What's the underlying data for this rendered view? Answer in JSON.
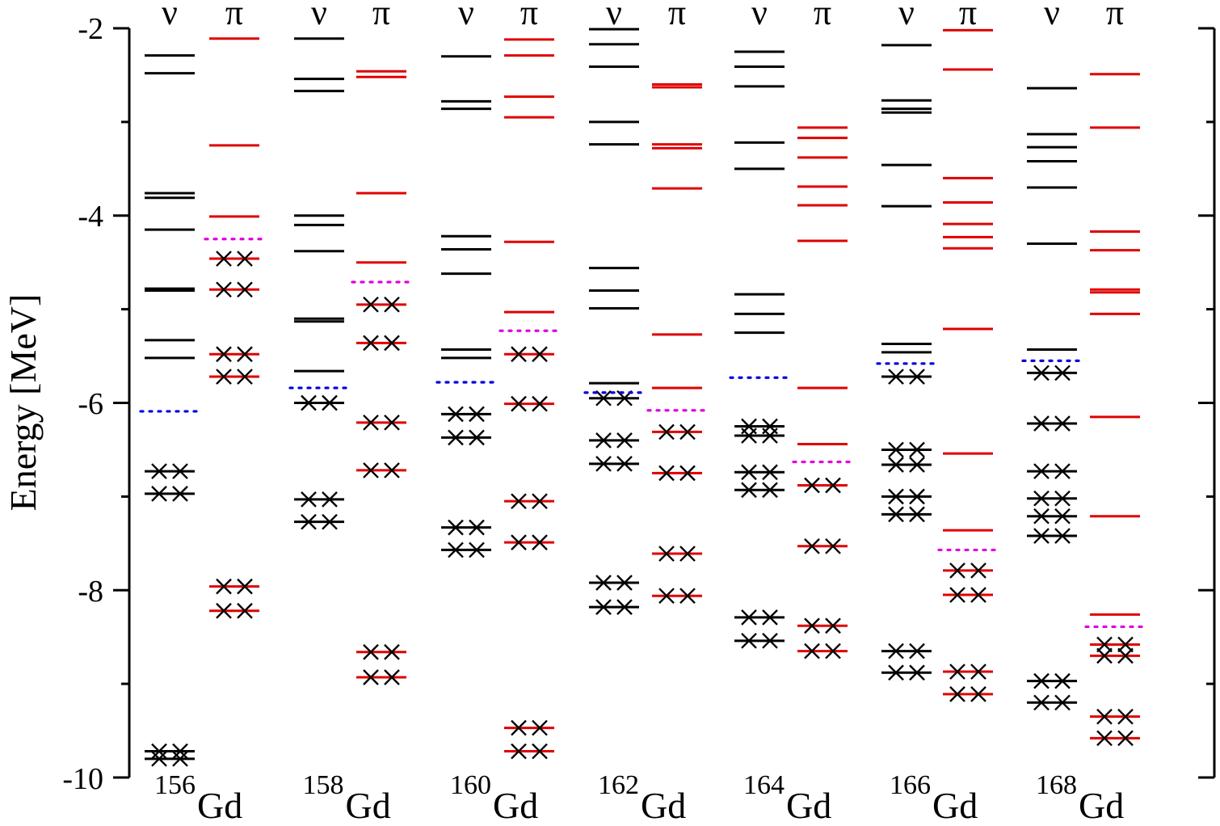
{
  "colors": {
    "neutron": "#000000",
    "proton": "#e00000",
    "neutron_fermi": "#0000e0",
    "proton_fermi": "#e000e0"
  },
  "chart_data": {
    "type": "level-scheme",
    "ylabel": "Energy [MeV]",
    "ylim": [
      -10,
      -2
    ],
    "yticks": [
      "-2",
      "-4",
      "-6",
      "-8",
      "-10"
    ],
    "column_labels": {
      "neutron": "ν",
      "proton": "π"
    },
    "isotopes": [
      {
        "mass": "156",
        "element": "Gd",
        "neutron": {
          "fermi": -6.09,
          "occupied": [
            -6.73,
            -6.97,
            -9.72,
            -9.8
          ],
          "empty": [
            -2.29,
            -2.48,
            -3.76,
            -3.81,
            -4.15,
            -4.78,
            -4.8,
            -5.33,
            -5.52
          ]
        },
        "proton": {
          "fermi": -4.25,
          "occupied": [
            -4.46,
            -4.79,
            -5.48,
            -5.72,
            -7.96,
            -8.22
          ],
          "empty": [
            -2.11,
            -3.25,
            -4.01
          ]
        }
      },
      {
        "mass": "158",
        "element": "Gd",
        "neutron": {
          "fermi": -5.84,
          "occupied": [
            -6.0,
            -7.03,
            -7.27
          ],
          "empty": [
            -2.11,
            -2.54,
            -2.67,
            -4.0,
            -4.1,
            -4.38,
            -5.1,
            -5.13,
            -5.66
          ]
        },
        "proton": {
          "fermi": -4.71,
          "occupied": [
            -4.95,
            -5.36,
            -6.21,
            -6.72,
            -8.66,
            -8.93
          ],
          "empty": [
            -2.46,
            -2.52,
            -3.76,
            -4.5
          ]
        }
      },
      {
        "mass": "160",
        "element": "Gd",
        "neutron": {
          "fermi": -5.78,
          "occupied": [
            -6.12,
            -6.37,
            -7.33,
            -7.57
          ],
          "empty": [
            -2.3,
            -2.78,
            -2.86,
            -4.22,
            -4.36,
            -4.62,
            -5.43,
            -5.52
          ]
        },
        "proton": {
          "fermi": -5.23,
          "occupied": [
            -5.48,
            -6.01,
            -7.05,
            -7.49,
            -9.47,
            -9.72
          ],
          "empty": [
            -2.12,
            -2.29,
            -2.73,
            -2.95,
            -4.28,
            -5.03
          ]
        }
      },
      {
        "mass": "162",
        "element": "Gd",
        "neutron": {
          "fermi": -5.89,
          "occupied": [
            -5.95,
            -6.4,
            -6.65,
            -7.92,
            -8.18
          ],
          "empty": [
            -2.01,
            -2.17,
            -2.41,
            -3.0,
            -3.24,
            -4.56,
            -4.8,
            -4.99,
            -5.79
          ]
        },
        "proton": {
          "fermi": -6.08,
          "occupied": [
            -6.31,
            -6.75,
            -7.61,
            -8.06
          ],
          "empty": [
            -2.6,
            -2.63,
            -3.24,
            -3.28,
            -3.71,
            -5.27,
            -5.84
          ]
        }
      },
      {
        "mass": "164",
        "element": "Gd",
        "neutron": {
          "fermi": -5.73,
          "occupied": [
            -6.25,
            -6.35,
            -6.74,
            -6.93,
            -8.29,
            -8.54
          ],
          "empty": [
            -2.25,
            -2.41,
            -2.62,
            -3.22,
            -3.5,
            -4.84,
            -5.05,
            -5.25
          ]
        },
        "proton": {
          "fermi": -6.63,
          "occupied": [
            -6.88,
            -7.53,
            -8.38,
            -8.65
          ],
          "empty": [
            -3.06,
            -3.17,
            -3.38,
            -3.69,
            -3.89,
            -4.27,
            -5.84,
            -6.44
          ]
        }
      },
      {
        "mass": "166",
        "element": "Gd",
        "neutron": {
          "fermi": -5.58,
          "occupied": [
            -5.72,
            -6.5,
            -6.66,
            -7.0,
            -7.19,
            -8.65,
            -8.88
          ],
          "empty": [
            -2.18,
            -2.77,
            -2.86,
            -2.9,
            -3.46,
            -3.9,
            -5.37,
            -5.46
          ]
        },
        "proton": {
          "fermi": -7.57,
          "occupied": [
            -7.79,
            -8.05,
            -8.87,
            -9.11
          ],
          "empty": [
            -2.02,
            -2.44,
            -3.6,
            -3.86,
            -4.09,
            -4.23,
            -4.35,
            -5.21,
            -6.54,
            -7.36
          ]
        }
      },
      {
        "mass": "168",
        "element": "Gd",
        "neutron": {
          "fermi": -5.55,
          "occupied": [
            -5.68,
            -6.22,
            -6.73,
            -7.02,
            -7.21,
            -7.42,
            -8.97,
            -9.2
          ],
          "empty": [
            -2.64,
            -3.13,
            -3.27,
            -3.42,
            -3.7,
            -4.3,
            -5.43
          ]
        },
        "proton": {
          "fermi": -8.39,
          "occupied": [
            -8.58,
            -8.7,
            -9.35,
            -9.58
          ],
          "empty": [
            -2.49,
            -3.06,
            -4.17,
            -4.37,
            -4.79,
            -4.82,
            -5.05,
            -6.15,
            -7.21,
            -8.26
          ]
        }
      }
    ]
  }
}
